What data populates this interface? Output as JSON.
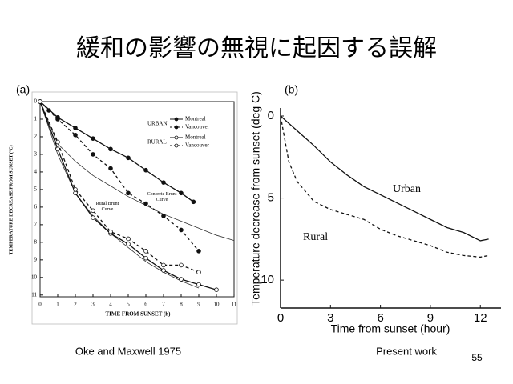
{
  "title": "緩和の影響の無視に起因する誤解",
  "page_number": "55",
  "chart_data": [
    {
      "type": "line",
      "panel_label": "(a)",
      "caption": "Oke and Maxwell 1975",
      "x_label": "TIME FROM SUNSET (h)",
      "y_label": "TEMPERATURE DECREASE FROM SUNSET (°C)",
      "xlim": [
        0,
        11
      ],
      "ylim": [
        0,
        11.1
      ],
      "y_inverted": true,
      "xticks": [
        0,
        1,
        2,
        3,
        4,
        5,
        6,
        7,
        8,
        9,
        10,
        11
      ],
      "yticks": [
        0,
        1,
        2,
        3,
        4,
        5,
        6,
        7,
        8,
        9,
        10,
        11
      ],
      "groups": [
        {
          "name": "URBAN",
          "series": [
            {
              "name": "Montreal",
              "color": "#111",
              "dash": false,
              "marker": "filled",
              "x": [
                0,
                1,
                2,
                3,
                4,
                5,
                6,
                7,
                8,
                8.7
              ],
              "values": [
                0,
                0.9,
                1.5,
                2.1,
                2.7,
                3.2,
                3.9,
                4.6,
                5.2,
                5.7
              ]
            },
            {
              "name": "Vancouver",
              "color": "#111",
              "dash": true,
              "marker": "filled",
              "x": [
                0,
                0.5,
                1,
                2,
                3,
                4,
                5,
                6,
                7,
                8,
                9
              ],
              "values": [
                0,
                0.5,
                1,
                1.9,
                3,
                3.8,
                5.2,
                5.8,
                6.5,
                7.3,
                8.5
              ]
            }
          ]
        },
        {
          "name": "RURAL",
          "series": [
            {
              "name": "Montreal",
              "color": "#111",
              "dash": false,
              "marker": "open",
              "x": [
                0,
                1,
                2,
                3,
                4,
                5,
                6,
                7,
                8,
                9,
                10
              ],
              "values": [
                0,
                2.7,
                5.2,
                6.6,
                7.5,
                8.1,
                8.9,
                9.6,
                10.1,
                10.4,
                10.7
              ]
            },
            {
              "name": "Vancouver",
              "color": "#111",
              "dash": true,
              "marker": "open",
              "x": [
                0,
                1,
                2,
                3,
                4,
                5,
                6,
                7,
                8,
                9
              ],
              "values": [
                0,
                2.3,
                5,
                6.2,
                7.4,
                7.8,
                8.5,
                9.3,
                9.3,
                9.7
              ]
            }
          ]
        }
      ],
      "curves": [
        {
          "name": "Concrete Brunt Curve",
          "color": "#333",
          "x": [
            0,
            1,
            2,
            3,
            4,
            5,
            6,
            7,
            8,
            9,
            10,
            11
          ],
          "values": [
            0,
            2.4,
            3.4,
            4.2,
            4.8,
            5.4,
            5.9,
            6.4,
            6.8,
            7.2,
            7.6,
            7.9
          ]
        },
        {
          "name": "Rural Brunt Curve",
          "color": "#333",
          "x": [
            0,
            1,
            2,
            3,
            4,
            5,
            6,
            7,
            8,
            9
          ],
          "values": [
            0,
            3,
            5.2,
            6.5,
            7.5,
            8.3,
            9.1,
            9.7,
            10.2,
            10.6
          ]
        }
      ]
    },
    {
      "type": "line",
      "panel_label": "(b)",
      "caption": "Present work",
      "x_label": "Time from sunset (hour)",
      "y_label": "Temperature decrease from sunset (deg C)",
      "xlim": [
        0,
        13
      ],
      "ylim": [
        0,
        11.7
      ],
      "y_inverted": true,
      "xticks": [
        0,
        3,
        6,
        9,
        12
      ],
      "yticks": [
        0,
        5,
        10
      ],
      "series": [
        {
          "name": "Urban",
          "color": "#111",
          "dash": false,
          "x": [
            0,
            1,
            2,
            3,
            4,
            5,
            6,
            7,
            8,
            9,
            10,
            11,
            12,
            12.5
          ],
          "values": [
            0,
            0.9,
            1.8,
            2.8,
            3.6,
            4.3,
            4.8,
            5.3,
            5.8,
            6.3,
            6.8,
            7.1,
            7.6,
            7.5
          ]
        },
        {
          "name": "Rural",
          "color": "#111",
          "dash": true,
          "x": [
            0,
            0.5,
            1,
            2,
            3,
            4,
            5,
            6,
            7,
            8,
            9,
            10,
            11,
            12,
            12.5
          ],
          "values": [
            0,
            2.8,
            4,
            5.2,
            5.7,
            6,
            6.3,
            6.9,
            7.3,
            7.6,
            7.9,
            8.3,
            8.5,
            8.6,
            8.5
          ]
        }
      ]
    }
  ]
}
